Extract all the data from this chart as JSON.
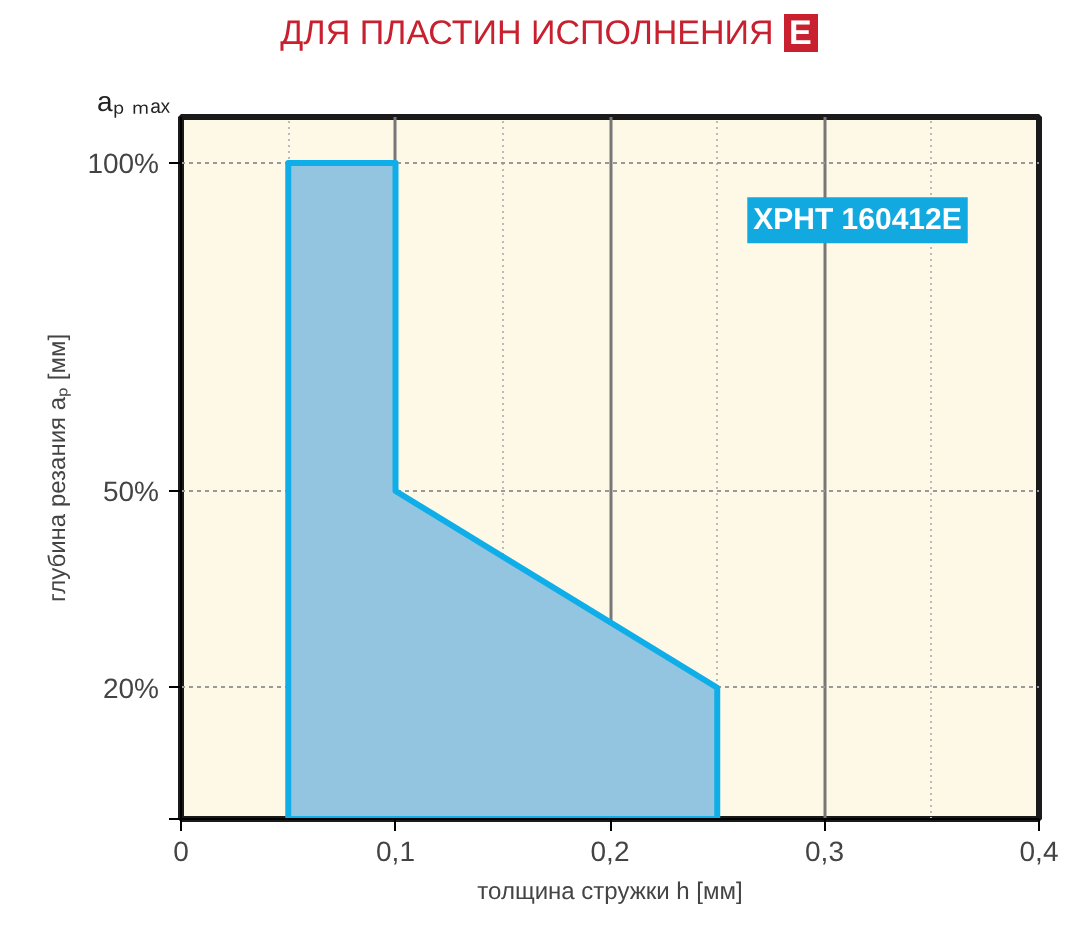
{
  "chart_data": {
    "type": "area",
    "title": "ДЛЯ ПЛАСТИН ИСПОЛНЕНИЯ E",
    "xlabel": "толщина стружки h [мм]",
    "ylabel": "глубина резания aₚ [мм]",
    "annotations": [
      "aₚ ₘₐₓ",
      "XPHT 160412E"
    ],
    "series": [
      {
        "x": [
          0.05,
          0.05,
          0.1,
          0.1,
          0.25,
          0.25
        ],
        "values": [
          0,
          100,
          100,
          50,
          20,
          0
        ],
        "color": "#93c5e0"
      }
    ],
    "xlim": [
      0,
      0.4
    ],
    "xticks": [
      0,
      {
        "value": 0.1,
        "label": "0,1"
      },
      {
        "value": 0.2,
        "label": "0,2"
      },
      {
        "value": 0.3,
        "label": "0,3"
      },
      {
        "value": 0.4,
        "label": "0,4"
      }
    ],
    "ylim": [
      0,
      107
    ],
    "yticks": [
      {
        "value": 0,
        "label": null
      },
      {
        "value": 20,
        "label": "20%"
      },
      {
        "value": 50,
        "label": "50%"
      },
      {
        "value": 100,
        "label": "100%"
      }
    ],
    "grid": true
  }
}
